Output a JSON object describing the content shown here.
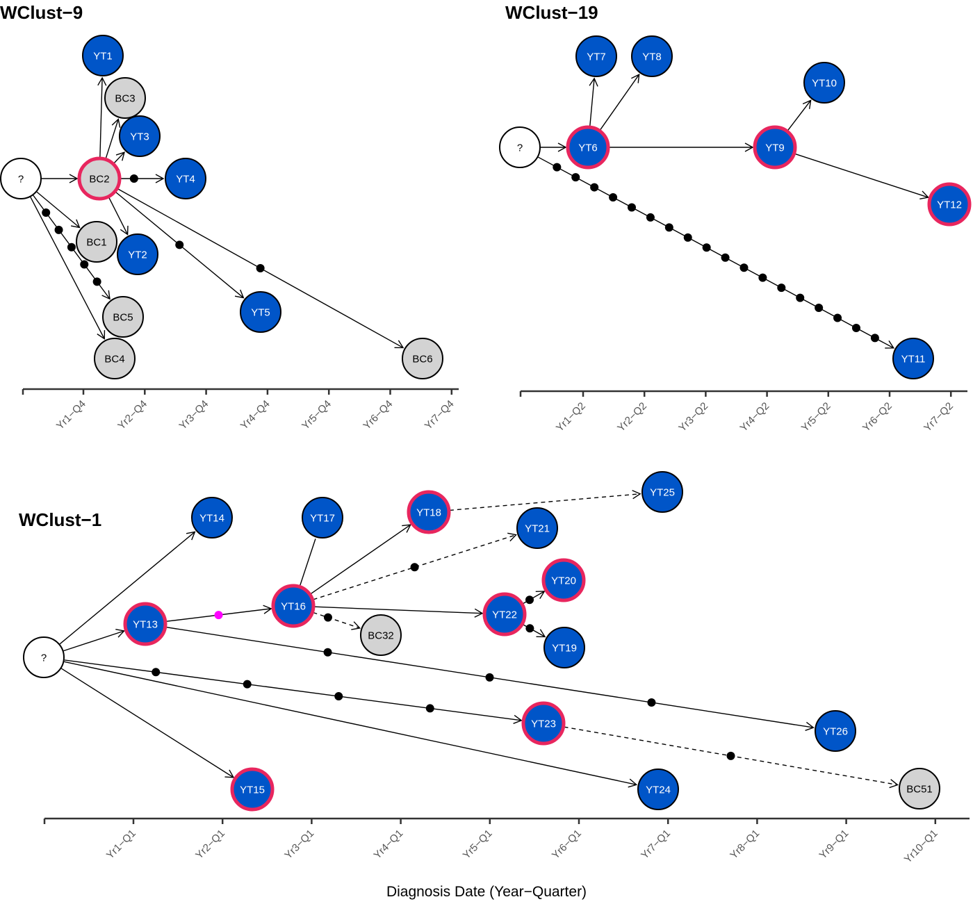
{
  "colors": {
    "yt_fill": "#0055c8",
    "bc_fill": "#d3d3d3",
    "unknown_fill": "#ffffff",
    "highlight_ring": "#e8265e",
    "node_stroke": "#000000",
    "intermediate_dot": "#000000",
    "special_dot": "#ff00ff",
    "axis": "#333333",
    "tick_text": "#555555"
  },
  "legend_semantics": {
    "yt_node": "blue filled circle",
    "bc_node": "gray filled circle",
    "unknown_source": "?",
    "highlighted_node": "pink/red ring",
    "edge_solid": "direct transmission",
    "edge_dashed": "uncertain transmission",
    "dot": "intermediate (unsampled) case"
  },
  "x_axis_title": "Diagnosis Date (Year−Quarter)",
  "chart_data": [
    {
      "type": "network",
      "title": "WClust−9",
      "x_unit": "quarters",
      "x_ticks": [
        "Yr1−Q4",
        "Yr2−Q4",
        "Yr3−Q4",
        "Yr4−Q4",
        "Yr5−Q4",
        "Yr6−Q4",
        "Yr7−Q4"
      ],
      "nodes": [
        {
          "id": "?",
          "kind": "unknown",
          "highlight": false
        },
        {
          "id": "BC2",
          "kind": "BC",
          "highlight": true
        },
        {
          "id": "YT1",
          "kind": "YT",
          "highlight": false
        },
        {
          "id": "BC3",
          "kind": "BC",
          "highlight": false
        },
        {
          "id": "YT3",
          "kind": "YT",
          "highlight": false
        },
        {
          "id": "YT4",
          "kind": "YT",
          "highlight": false
        },
        {
          "id": "BC1",
          "kind": "BC",
          "highlight": false
        },
        {
          "id": "YT2",
          "kind": "YT",
          "highlight": false
        },
        {
          "id": "BC5",
          "kind": "BC",
          "highlight": false
        },
        {
          "id": "BC4",
          "kind": "BC",
          "highlight": false
        },
        {
          "id": "YT5",
          "kind": "YT",
          "highlight": false
        },
        {
          "id": "BC6",
          "kind": "BC",
          "highlight": false
        }
      ],
      "edges": [
        {
          "from": "?",
          "to": "BC2",
          "style": "solid",
          "intermediates": 0
        },
        {
          "from": "?",
          "to": "BC1",
          "style": "solid",
          "intermediates": 0
        },
        {
          "from": "?",
          "to": "BC5",
          "style": "solid",
          "intermediates": 5
        },
        {
          "from": "?",
          "to": "BC4",
          "style": "solid",
          "intermediates": 0
        },
        {
          "from": "BC2",
          "to": "YT1",
          "style": "solid",
          "intermediates": 0
        },
        {
          "from": "BC2",
          "to": "BC3",
          "style": "solid",
          "intermediates": 0
        },
        {
          "from": "BC2",
          "to": "YT3",
          "style": "solid",
          "intermediates": 0
        },
        {
          "from": "BC2",
          "to": "YT4",
          "style": "solid",
          "intermediates": 1
        },
        {
          "from": "BC2",
          "to": "YT2",
          "style": "solid",
          "intermediates": 0
        },
        {
          "from": "BC2",
          "to": "YT5",
          "style": "solid",
          "intermediates": 1
        },
        {
          "from": "BC2",
          "to": "BC6",
          "style": "solid",
          "intermediates": 1
        }
      ]
    },
    {
      "type": "network",
      "title": "WClust−19",
      "x_unit": "quarters",
      "x_ticks": [
        "Yr1−Q2",
        "Yr2−Q2",
        "Yr3−Q2",
        "Yr4−Q2",
        "Yr5−Q2",
        "Yr6−Q2",
        "Yr7−Q2"
      ],
      "nodes": [
        {
          "id": "?",
          "kind": "unknown",
          "highlight": false
        },
        {
          "id": "YT6",
          "kind": "YT",
          "highlight": true
        },
        {
          "id": "YT7",
          "kind": "YT",
          "highlight": false
        },
        {
          "id": "YT8",
          "kind": "YT",
          "highlight": false
        },
        {
          "id": "YT9",
          "kind": "YT",
          "highlight": true
        },
        {
          "id": "YT10",
          "kind": "YT",
          "highlight": false
        },
        {
          "id": "YT12",
          "kind": "YT",
          "highlight": true
        },
        {
          "id": "YT11",
          "kind": "YT",
          "highlight": false
        }
      ],
      "edges": [
        {
          "from": "?",
          "to": "YT6",
          "style": "solid",
          "intermediates": 0
        },
        {
          "from": "?",
          "to": "YT11",
          "style": "solid",
          "intermediates": 18
        },
        {
          "from": "YT6",
          "to": "YT7",
          "style": "solid",
          "intermediates": 0
        },
        {
          "from": "YT6",
          "to": "YT8",
          "style": "solid",
          "intermediates": 0
        },
        {
          "from": "YT6",
          "to": "YT9",
          "style": "solid",
          "intermediates": 0
        },
        {
          "from": "YT9",
          "to": "YT10",
          "style": "solid",
          "intermediates": 0
        },
        {
          "from": "YT9",
          "to": "YT12",
          "style": "solid",
          "intermediates": 0
        }
      ]
    },
    {
      "type": "network",
      "title": "WClust−1",
      "x_unit": "quarters",
      "x_ticks": [
        "Yr1−Q1",
        "Yr2−Q1",
        "Yr3−Q1",
        "Yr4−Q1",
        "Yr5−Q1",
        "Yr6−Q1",
        "Yr7−Q1",
        "Yr8−Q1",
        "Yr9−Q1",
        "Yr10−Q1"
      ],
      "nodes": [
        {
          "id": "?",
          "kind": "unknown",
          "highlight": false
        },
        {
          "id": "YT13",
          "kind": "YT",
          "highlight": true
        },
        {
          "id": "YT14",
          "kind": "YT",
          "highlight": false
        },
        {
          "id": "YT15",
          "kind": "YT",
          "highlight": true
        },
        {
          "id": "YT16",
          "kind": "YT",
          "highlight": true
        },
        {
          "id": "YT17",
          "kind": "YT",
          "highlight": false
        },
        {
          "id": "YT18",
          "kind": "YT",
          "highlight": true
        },
        {
          "id": "BC32",
          "kind": "BC",
          "highlight": false
        },
        {
          "id": "YT21",
          "kind": "YT",
          "highlight": false
        },
        {
          "id": "YT22",
          "kind": "YT",
          "highlight": true
        },
        {
          "id": "YT20",
          "kind": "YT",
          "highlight": true
        },
        {
          "id": "YT19",
          "kind": "YT",
          "highlight": false
        },
        {
          "id": "YT25",
          "kind": "YT",
          "highlight": false
        },
        {
          "id": "YT23",
          "kind": "YT",
          "highlight": true
        },
        {
          "id": "YT24",
          "kind": "YT",
          "highlight": false
        },
        {
          "id": "YT26",
          "kind": "YT",
          "highlight": false
        },
        {
          "id": "BC51",
          "kind": "BC",
          "highlight": false
        }
      ],
      "edges": [
        {
          "from": "?",
          "to": "YT14",
          "style": "solid",
          "intermediates": 0
        },
        {
          "from": "?",
          "to": "YT13",
          "style": "solid",
          "intermediates": 0
        },
        {
          "from": "?",
          "to": "YT23",
          "style": "solid",
          "intermediates": 4
        },
        {
          "from": "?",
          "to": "YT24",
          "style": "solid",
          "intermediates": 0
        },
        {
          "from": "?",
          "to": "YT15",
          "style": "solid",
          "intermediates": 0
        },
        {
          "from": "YT13",
          "to": "YT16",
          "style": "solid",
          "intermediates": 1,
          "special_intermediate": true
        },
        {
          "from": "YT13",
          "to": "YT26",
          "style": "solid",
          "intermediates": 3
        },
        {
          "from": "YT16",
          "to": "YT17",
          "style": "line",
          "intermediates": 0
        },
        {
          "from": "YT16",
          "to": "YT18",
          "style": "solid",
          "intermediates": 0
        },
        {
          "from": "YT16",
          "to": "YT21",
          "style": "dashed",
          "intermediates": 1
        },
        {
          "from": "YT16",
          "to": "YT22",
          "style": "solid",
          "intermediates": 0
        },
        {
          "from": "YT16",
          "to": "BC32",
          "style": "dashed",
          "intermediates": 1
        },
        {
          "from": "YT18",
          "to": "YT25",
          "style": "dashed",
          "intermediates": 0
        },
        {
          "from": "YT22",
          "to": "YT20",
          "style": "solid",
          "intermediates": 1
        },
        {
          "from": "YT22",
          "to": "YT19",
          "style": "solid",
          "intermediates": 1
        },
        {
          "from": "YT23",
          "to": "BC51",
          "style": "dashed",
          "intermediates": 1
        }
      ]
    }
  ]
}
